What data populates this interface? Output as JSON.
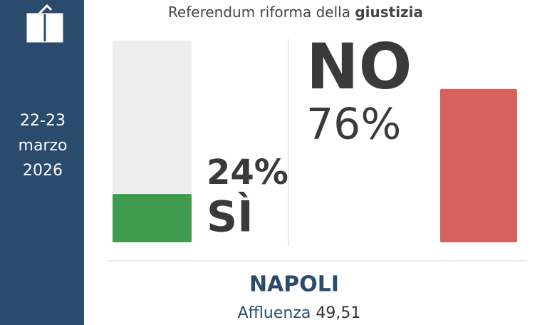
{
  "chart_data": {
    "type": "bar",
    "title": "Referendum riforma della",
    "title_emphasis": "giustizia",
    "date": [
      "22-23",
      "marzo",
      "2026"
    ],
    "categories": [
      "SÌ",
      "NO"
    ],
    "values": [
      24,
      76
    ],
    "value_labels": [
      "24%",
      "76%"
    ],
    "colors": [
      "#3e9b4f",
      "#d5625f"
    ],
    "ylim": [
      0,
      100
    ]
  },
  "location": "NAPOLI",
  "turnout_label": "Affluenza",
  "turnout": "49,51"
}
